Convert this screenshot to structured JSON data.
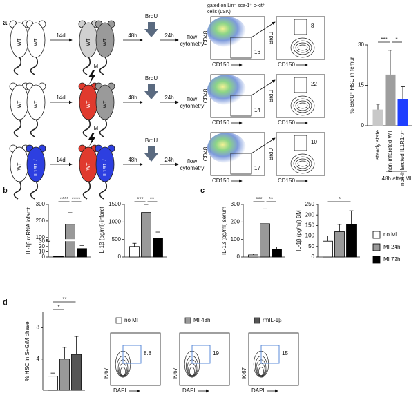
{
  "panels": [
    "a",
    "b",
    "c",
    "d"
  ],
  "scheme": {
    "wait": "14d",
    "t1": "48h",
    "t2": "24h",
    "injection": "BrdU",
    "readout": [
      "flow",
      "cytometry"
    ],
    "body_outline": "#222",
    "rows": [
      {
        "left": [
          "WT",
          "WT"
        ],
        "left_colors": [
          "#ffffff",
          "#ffffff"
        ],
        "right": [
          "WT",
          "WT"
        ],
        "right_colors": [
          "#d0d0d0",
          "#9a9a9a"
        ]
      },
      {
        "left": [
          "WT",
          "WT"
        ],
        "left_colors": [
          "#ffffff",
          "#ffffff"
        ],
        "right": [
          "WT",
          "WT"
        ],
        "right_colors": [
          "#e03a2e",
          "#9a9a9a"
        ],
        "mi": "MI"
      },
      {
        "left": [
          "WT",
          "IL1R1⁻/⁻"
        ],
        "left_colors": [
          "#ffffff",
          "#2d3fe0"
        ],
        "right": [
          "WT",
          "IL1R1⁻/⁻"
        ],
        "right_colors": [
          "#e03a2e",
          "#2d3fe0"
        ],
        "mi": "MI"
      }
    ]
  },
  "flow_a": {
    "gating": [
      "gated on Lin⁻ sca-1⁺ c-kit⁺",
      "cells (LSK)"
    ],
    "x": "CD150",
    "y1": "CD48",
    "y2": "BrdU",
    "gates": [
      {
        "lsk": 16,
        "brdu": 8
      },
      {
        "lsk": 14,
        "brdu": 22
      },
      {
        "lsk": 17,
        "brdu": 10
      }
    ]
  },
  "flow_d": {
    "x": "DAPI",
    "y": "Ki67",
    "gate_color": "#4a7fd4",
    "samples": [
      {
        "name": "no MI",
        "color": "#ffffff",
        "value": 8.8
      },
      {
        "name": "MI 48h",
        "color": "#9a9a9a",
        "value": 19
      },
      {
        "name": "rmIL-1β",
        "color": "#555555",
        "value": 15
      }
    ]
  },
  "chart_data": [
    {
      "type": "bar",
      "ylabel": "% BrdU⁺ HSC in femur",
      "categories": [
        "steady state",
        "non-infarcted WT",
        "non-infarcted IL1R1⁻/⁻"
      ],
      "values": [
        6,
        19,
        10
      ],
      "errors": [
        2,
        9,
        4.5
      ],
      "colors": [
        "#c8c8c8",
        "#9e9e9e",
        "#1f3fff"
      ],
      "ylim": [
        0,
        30
      ],
      "yticks": [
        0,
        15,
        30
      ],
      "significance": [
        {
          "between": [
            0,
            1
          ],
          "label": "***"
        },
        {
          "between": [
            1,
            2
          ],
          "label": "*"
        }
      ],
      "xlabel": "48h after MI"
    },
    {
      "type": "bar",
      "ylabel": "IL-1β mRNA infarct",
      "categories": [
        null,
        null,
        null
      ],
      "values": [
        1,
        180,
        16
      ],
      "errors": [
        0.5,
        70,
        6
      ],
      "colors": [
        "#ffffff",
        "#999999",
        "#000000"
      ],
      "bar_outline": "#000000",
      "ylim": [
        0,
        300
      ],
      "yticks": [
        0,
        10,
        20,
        30,
        100,
        200,
        300
      ],
      "axis_break": [
        30,
        90
      ],
      "significance": [
        {
          "between": [
            0,
            1
          ],
          "label": "****"
        },
        {
          "between": [
            1,
            2
          ],
          "label": "****"
        }
      ]
    },
    {
      "type": "bar",
      "ylabel": "IL-1β (pg/ml) infarct",
      "categories": [
        null,
        null,
        null
      ],
      "values": [
        300,
        1270,
        530
      ],
      "errors": [
        90,
        230,
        180
      ],
      "colors": [
        "#ffffff",
        "#999999",
        "#000000"
      ],
      "bar_outline": "#000000",
      "ylim": [
        0,
        1500
      ],
      "yticks": [
        0,
        500,
        1000,
        1500
      ],
      "significance": [
        {
          "between": [
            0,
            1
          ],
          "label": "***"
        },
        {
          "between": [
            1,
            2
          ],
          "label": "**"
        }
      ]
    },
    {
      "type": "bar",
      "ylabel": "IL-1β (pg/ml) serum",
      "categories": [
        null,
        null,
        null
      ],
      "values": [
        12,
        190,
        45
      ],
      "errors": [
        6,
        85,
        12
      ],
      "colors": [
        "#ffffff",
        "#999999",
        "#000000"
      ],
      "bar_outline": "#000000",
      "ylim": [
        0,
        300
      ],
      "yticks": [
        0,
        100,
        200,
        300
      ],
      "significance": [
        {
          "between": [
            0,
            1
          ],
          "label": "***"
        },
        {
          "between": [
            1,
            2
          ],
          "label": "**"
        }
      ]
    },
    {
      "type": "bar",
      "ylabel": "IL-1β (pg/ml) BM",
      "categories": [
        null,
        null,
        null
      ],
      "values": [
        75,
        120,
        155
      ],
      "errors": [
        25,
        35,
        65
      ],
      "colors": [
        "#ffffff",
        "#999999",
        "#000000"
      ],
      "bar_outline": "#000000",
      "ylim": [
        0,
        250
      ],
      "yticks": [
        0,
        50,
        100,
        150,
        200,
        250
      ],
      "significance": [
        {
          "between": [
            0,
            2
          ],
          "label": "*"
        }
      ],
      "legend": [
        "no MI",
        "MI 24h",
        "MI 72h"
      ]
    },
    {
      "type": "bar",
      "ylabel": "% HSC in S+G/M phase",
      "categories": [
        null,
        null,
        null
      ],
      "values": [
        1.8,
        4,
        4.6
      ],
      "errors": [
        0.4,
        1.5,
        2.3
      ],
      "colors": [
        "#ffffff",
        "#999999",
        "#555555"
      ],
      "bar_outline": "#000000",
      "ylim": [
        0,
        10
      ],
      "yticks": [
        4,
        8
      ],
      "significance": [
        {
          "between": [
            0,
            1
          ],
          "label": "*"
        },
        {
          "between": [
            0,
            2
          ],
          "label": "**"
        }
      ]
    }
  ]
}
